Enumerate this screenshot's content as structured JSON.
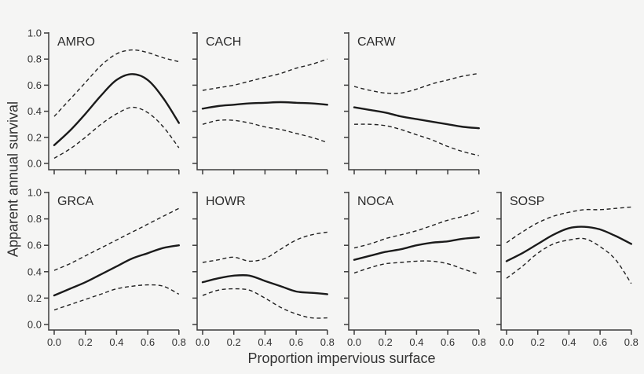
{
  "figure": {
    "background": "#f5f5f4",
    "line_color": "#1b1b1b",
    "text_color": "#333333",
    "xlabel": "Proportion impervious surface",
    "ylabel": "Apparent annual survival"
  },
  "axis": {
    "x_ticks": [
      0.0,
      0.2,
      0.4,
      0.6,
      0.8
    ],
    "x_tick_labels": [
      "0.0",
      "0.2",
      "0.4",
      "0.6",
      "0.8"
    ],
    "y_ticks": [
      0.0,
      0.2,
      0.4,
      0.6,
      0.8,
      1.0
    ],
    "y_tick_labels": [
      "0.0",
      "0.2",
      "0.4",
      "0.6",
      "0.8",
      "1.0"
    ],
    "xlim": [
      0.0,
      0.8
    ],
    "ylim": [
      0.0,
      1.0
    ],
    "grid": false
  },
  "chart_data": [
    {
      "type": "line",
      "title": "AMRO",
      "row": 0,
      "col": 0,
      "xlim": [
        0.0,
        0.8
      ],
      "ylim": [
        0.0,
        1.0
      ],
      "x": [
        0.0,
        0.1,
        0.2,
        0.3,
        0.4,
        0.5,
        0.6,
        0.7,
        0.8
      ],
      "series": [
        {
          "name": "estimate",
          "line": "solid",
          "values": [
            0.14,
            0.25,
            0.38,
            0.52,
            0.64,
            0.685,
            0.64,
            0.5,
            0.31
          ]
        },
        {
          "name": "upper-ci",
          "line": "dashed",
          "values": [
            0.36,
            0.49,
            0.62,
            0.75,
            0.84,
            0.87,
            0.85,
            0.81,
            0.78
          ]
        },
        {
          "name": "lower-ci",
          "line": "dashed",
          "values": [
            0.04,
            0.11,
            0.2,
            0.3,
            0.38,
            0.43,
            0.39,
            0.28,
            0.12
          ]
        }
      ]
    },
    {
      "type": "line",
      "title": "CACH",
      "row": 0,
      "col": 1,
      "xlim": [
        0.0,
        0.8
      ],
      "ylim": [
        0.0,
        1.0
      ],
      "x": [
        0.0,
        0.1,
        0.2,
        0.3,
        0.4,
        0.5,
        0.6,
        0.7,
        0.8
      ],
      "series": [
        {
          "name": "estimate",
          "line": "solid",
          "values": [
            0.42,
            0.44,
            0.45,
            0.46,
            0.465,
            0.47,
            0.465,
            0.46,
            0.45
          ]
        },
        {
          "name": "upper-ci",
          "line": "dashed",
          "values": [
            0.56,
            0.58,
            0.6,
            0.63,
            0.66,
            0.69,
            0.73,
            0.76,
            0.8
          ]
        },
        {
          "name": "lower-ci",
          "line": "dashed",
          "values": [
            0.3,
            0.33,
            0.33,
            0.31,
            0.28,
            0.26,
            0.23,
            0.2,
            0.16
          ]
        }
      ]
    },
    {
      "type": "line",
      "title": "CARW",
      "row": 0,
      "col": 2,
      "xlim": [
        0.0,
        0.8
      ],
      "ylim": [
        0.0,
        1.0
      ],
      "x": [
        0.0,
        0.1,
        0.2,
        0.3,
        0.4,
        0.5,
        0.6,
        0.7,
        0.8
      ],
      "series": [
        {
          "name": "estimate",
          "line": "solid",
          "values": [
            0.43,
            0.41,
            0.39,
            0.36,
            0.34,
            0.32,
            0.3,
            0.28,
            0.27
          ]
        },
        {
          "name": "upper-ci",
          "line": "dashed",
          "values": [
            0.59,
            0.56,
            0.54,
            0.54,
            0.57,
            0.61,
            0.64,
            0.67,
            0.69
          ]
        },
        {
          "name": "lower-ci",
          "line": "dashed",
          "values": [
            0.3,
            0.3,
            0.29,
            0.26,
            0.22,
            0.18,
            0.13,
            0.09,
            0.06
          ]
        }
      ]
    },
    {
      "type": "line",
      "title": "GRCA",
      "row": 1,
      "col": 0,
      "xlim": [
        0.0,
        0.8
      ],
      "ylim": [
        0.0,
        1.0
      ],
      "x": [
        0.0,
        0.1,
        0.2,
        0.3,
        0.4,
        0.5,
        0.6,
        0.7,
        0.8
      ],
      "series": [
        {
          "name": "estimate",
          "line": "solid",
          "values": [
            0.22,
            0.27,
            0.32,
            0.38,
            0.44,
            0.5,
            0.54,
            0.58,
            0.6
          ]
        },
        {
          "name": "upper-ci",
          "line": "dashed",
          "values": [
            0.41,
            0.46,
            0.52,
            0.58,
            0.64,
            0.7,
            0.76,
            0.82,
            0.88
          ]
        },
        {
          "name": "lower-ci",
          "line": "dashed",
          "values": [
            0.11,
            0.15,
            0.19,
            0.23,
            0.27,
            0.29,
            0.3,
            0.29,
            0.23
          ]
        }
      ]
    },
    {
      "type": "line",
      "title": "HOWR",
      "row": 1,
      "col": 1,
      "xlim": [
        0.0,
        0.8
      ],
      "ylim": [
        0.0,
        1.0
      ],
      "x": [
        0.0,
        0.1,
        0.2,
        0.3,
        0.4,
        0.5,
        0.6,
        0.7,
        0.8
      ],
      "series": [
        {
          "name": "estimate",
          "line": "solid",
          "values": [
            0.32,
            0.35,
            0.37,
            0.37,
            0.33,
            0.29,
            0.25,
            0.24,
            0.23
          ]
        },
        {
          "name": "upper-ci",
          "line": "dashed",
          "values": [
            0.47,
            0.49,
            0.51,
            0.48,
            0.5,
            0.57,
            0.64,
            0.68,
            0.7
          ]
        },
        {
          "name": "lower-ci",
          "line": "dashed",
          "values": [
            0.22,
            0.26,
            0.27,
            0.26,
            0.2,
            0.13,
            0.08,
            0.05,
            0.05
          ]
        }
      ]
    },
    {
      "type": "line",
      "title": "NOCA",
      "row": 1,
      "col": 2,
      "xlim": [
        0.0,
        0.8
      ],
      "ylim": [
        0.0,
        1.0
      ],
      "x": [
        0.0,
        0.1,
        0.2,
        0.3,
        0.4,
        0.5,
        0.6,
        0.7,
        0.8
      ],
      "series": [
        {
          "name": "estimate",
          "line": "solid",
          "values": [
            0.49,
            0.52,
            0.55,
            0.57,
            0.6,
            0.62,
            0.63,
            0.65,
            0.66
          ]
        },
        {
          "name": "upper-ci",
          "line": "dashed",
          "values": [
            0.58,
            0.61,
            0.65,
            0.68,
            0.71,
            0.75,
            0.79,
            0.82,
            0.86
          ]
        },
        {
          "name": "lower-ci",
          "line": "dashed",
          "values": [
            0.39,
            0.43,
            0.46,
            0.47,
            0.48,
            0.48,
            0.46,
            0.42,
            0.38
          ]
        }
      ]
    },
    {
      "type": "line",
      "title": "SOSP",
      "row": 1,
      "col": 3,
      "xlim": [
        0.0,
        0.8
      ],
      "ylim": [
        0.0,
        1.0
      ],
      "x": [
        0.0,
        0.1,
        0.2,
        0.3,
        0.4,
        0.5,
        0.6,
        0.7,
        0.8
      ],
      "series": [
        {
          "name": "estimate",
          "line": "solid",
          "values": [
            0.48,
            0.54,
            0.61,
            0.68,
            0.73,
            0.74,
            0.72,
            0.67,
            0.61
          ]
        },
        {
          "name": "upper-ci",
          "line": "dashed",
          "values": [
            0.62,
            0.7,
            0.77,
            0.82,
            0.85,
            0.87,
            0.87,
            0.88,
            0.89
          ]
        },
        {
          "name": "lower-ci",
          "line": "dashed",
          "values": [
            0.35,
            0.44,
            0.54,
            0.61,
            0.64,
            0.65,
            0.59,
            0.49,
            0.31
          ]
        }
      ]
    }
  ]
}
